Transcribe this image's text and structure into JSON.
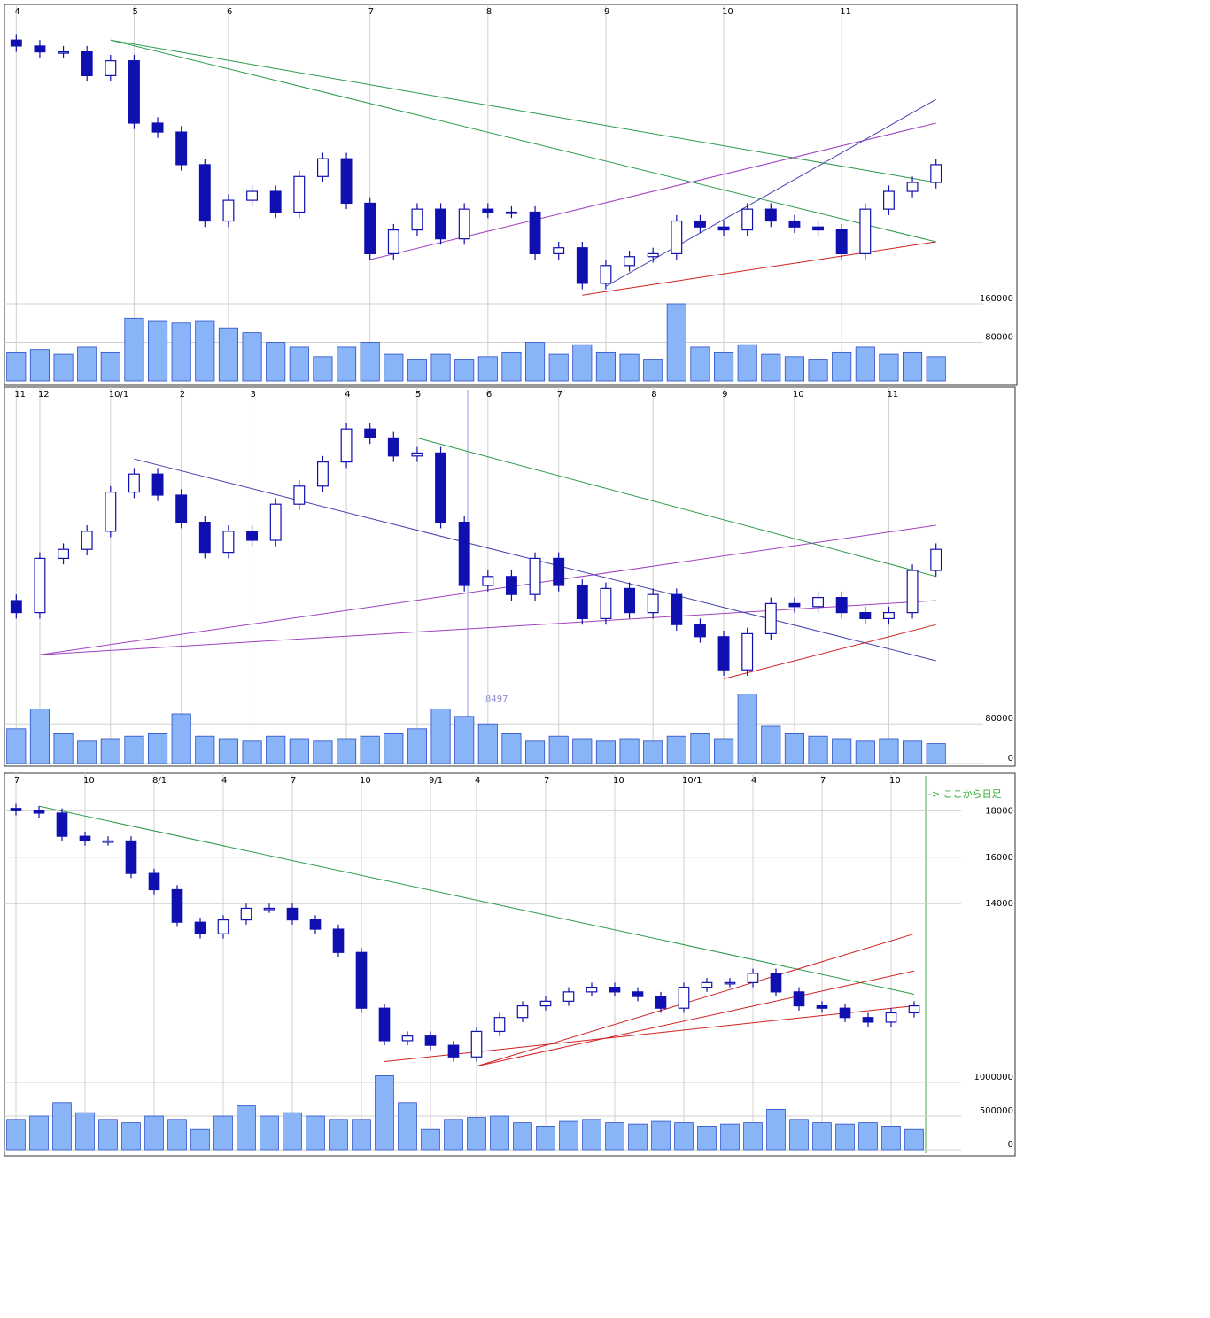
{
  "chart_data": [
    {
      "type": "candlestick",
      "categories": [
        "4",
        null,
        null,
        null,
        null,
        "5",
        null,
        null,
        null,
        "6",
        null,
        null,
        null,
        null,
        null,
        "7",
        null,
        null,
        null,
        null,
        "8",
        null,
        null,
        null,
        null,
        "9",
        null,
        null,
        null,
        null,
        "10",
        null,
        null,
        null,
        null,
        "11",
        null,
        null,
        null,
        null
      ],
      "open": [
        88,
        86,
        84,
        84,
        76,
        81,
        60,
        57,
        46,
        27,
        34,
        37,
        30,
        42,
        48,
        33,
        16,
        24,
        31,
        21,
        31,
        30,
        30,
        16,
        18,
        6,
        12,
        15,
        16,
        27,
        25,
        24,
        31,
        27,
        25,
        24,
        16,
        31,
        37,
        40
      ],
      "high": [
        90,
        88,
        86,
        86,
        83,
        83,
        62,
        59,
        48,
        36,
        39,
        39,
        44,
        50,
        50,
        35,
        26,
        33,
        33,
        33,
        33,
        32,
        32,
        20,
        20,
        14,
        17,
        18,
        29,
        29,
        27,
        33,
        33,
        29,
        27,
        26,
        33,
        39,
        42,
        48
      ],
      "low": [
        84,
        82,
        82,
        74,
        74,
        58,
        55,
        44,
        25,
        25,
        32,
        28,
        28,
        40,
        31,
        14,
        14,
        22,
        19,
        19,
        28,
        28,
        14,
        14,
        4,
        4,
        10,
        13,
        14,
        23,
        22,
        22,
        25,
        23,
        22,
        14,
        14,
        29,
        35,
        38
      ],
      "close": [
        86,
        84,
        84,
        76,
        81,
        60,
        57,
        46,
        27,
        34,
        37,
        30,
        42,
        48,
        33,
        16,
        24,
        31,
        21,
        31,
        30,
        30,
        16,
        18,
        6,
        12,
        15,
        16,
        27,
        25,
        24,
        31,
        27,
        25,
        24,
        16,
        31,
        37,
        40,
        46
      ],
      "ylim": [
        0,
        100
      ],
      "volume": [
        60000,
        65000,
        55000,
        70000,
        60000,
        130000,
        125000,
        120000,
        125000,
        110000,
        100000,
        80000,
        70000,
        50000,
        70000,
        80000,
        55000,
        45000,
        55000,
        45000,
        50000,
        60000,
        80000,
        55000,
        75000,
        60000,
        55000,
        45000,
        160000,
        70000,
        60000,
        75000,
        55000,
        50000,
        45000,
        60000,
        70000,
        55000,
        60000,
        50000
      ],
      "vol_ylim": [
        0,
        160000
      ],
      "vol_yticks": [
        80000,
        160000
      ],
      "trendlines": [
        {
          "color": "#2a9a4a",
          "from": [
            4,
            88
          ],
          "to": [
            39,
            40
          ]
        },
        {
          "color": "#2a9a4a",
          "from": [
            4,
            88
          ],
          "to": [
            39,
            20
          ]
        },
        {
          "color": "#a040c0",
          "from": [
            15,
            14
          ],
          "to": [
            39,
            60
          ]
        },
        {
          "color": "#d02020",
          "from": [
            24,
            2
          ],
          "to": [
            39,
            20
          ]
        },
        {
          "color": "#4040b0",
          "from": [
            25,
            5
          ],
          "to": [
            39,
            68
          ]
        }
      ]
    },
    {
      "type": "candlestick",
      "categories": [
        "11",
        "12",
        null,
        null,
        "10/1",
        null,
        null,
        "2",
        null,
        null,
        "3",
        null,
        null,
        null,
        "4",
        null,
        null,
        "5",
        null,
        null,
        "6",
        null,
        null,
        "7",
        null,
        null,
        null,
        "8",
        null,
        null,
        "9",
        null,
        null,
        "10",
        null,
        null,
        null,
        "11",
        null,
        null
      ],
      "open": [
        30,
        26,
        44,
        47,
        53,
        66,
        72,
        65,
        56,
        46,
        53,
        50,
        62,
        68,
        76,
        87,
        84,
        78,
        79,
        56,
        35,
        38,
        32,
        44,
        35,
        24,
        34,
        26,
        32,
        22,
        18,
        7,
        19,
        29,
        28,
        31,
        26,
        24,
        26,
        40
      ],
      "high": [
        32,
        46,
        49,
        55,
        68,
        74,
        74,
        67,
        58,
        55,
        55,
        64,
        70,
        78,
        89,
        89,
        86,
        81,
        81,
        58,
        40,
        40,
        46,
        46,
        37,
        36,
        36,
        34,
        34,
        24,
        20,
        21,
        31,
        31,
        33,
        33,
        28,
        28,
        42,
        49
      ],
      "low": [
        24,
        24,
        42,
        45,
        51,
        64,
        63,
        54,
        44,
        44,
        48,
        48,
        60,
        66,
        74,
        82,
        76,
        76,
        54,
        33,
        33,
        30,
        30,
        33,
        22,
        22,
        24,
        24,
        20,
        16,
        5,
        5,
        17,
        26,
        26,
        24,
        22,
        22,
        24,
        38
      ],
      "close": [
        26,
        44,
        47,
        53,
        66,
        72,
        65,
        56,
        46,
        53,
        50,
        62,
        68,
        76,
        87,
        84,
        78,
        79,
        56,
        35,
        38,
        32,
        44,
        35,
        24,
        34,
        26,
        32,
        22,
        18,
        7,
        19,
        29,
        28,
        31,
        26,
        24,
        26,
        40,
        47
      ],
      "ylim": [
        0,
        100
      ],
      "volume": [
        70000,
        110000,
        60000,
        45000,
        50000,
        55000,
        60000,
        100000,
        55000,
        50000,
        45000,
        55000,
        50000,
        45000,
        50000,
        55000,
        60000,
        70000,
        110000,
        95000,
        80000,
        60000,
        45000,
        55000,
        50000,
        45000,
        50000,
        45000,
        55000,
        60000,
        50000,
        140000,
        75000,
        60000,
        55000,
        50000,
        45000,
        50000,
        45000,
        40000
      ],
      "vol_ylim": [
        0,
        150000
      ],
      "vol_yticks": [
        0,
        80000
      ],
      "annotation": "8497",
      "trendlines": [
        {
          "color": "#a040c0",
          "from": [
            1,
            12
          ],
          "to": [
            39,
            55
          ]
        },
        {
          "color": "#a040c0",
          "from": [
            1,
            12
          ],
          "to": [
            39,
            30
          ]
        },
        {
          "color": "#4040b0",
          "from": [
            5,
            77
          ],
          "to": [
            39,
            10
          ]
        },
        {
          "color": "#2a9a4a",
          "from": [
            17,
            84
          ],
          "to": [
            39,
            38
          ]
        },
        {
          "color": "#d02020",
          "from": [
            30,
            4
          ],
          "to": [
            39,
            22
          ]
        }
      ]
    },
    {
      "type": "candlestick",
      "categories": [
        "7",
        null,
        null,
        "10",
        null,
        null,
        "8/1",
        null,
        null,
        "4",
        null,
        null,
        "7",
        null,
        null,
        "10",
        null,
        null,
        "9/1",
        null,
        "4",
        null,
        null,
        "7",
        null,
        null,
        "10",
        null,
        null,
        "10/1",
        null,
        null,
        "4",
        null,
        null,
        "7",
        null,
        null,
        "10",
        null
      ],
      "open": [
        18100,
        18000,
        17900,
        16900,
        16700,
        16700,
        15300,
        14600,
        13200,
        12700,
        13300,
        13800,
        13800,
        13300,
        12900,
        11900,
        9500,
        8100,
        8300,
        7900,
        7400,
        8500,
        9100,
        9600,
        9800,
        10200,
        10400,
        10200,
        10000,
        9500,
        10400,
        10600,
        10600,
        11000,
        10200,
        9600,
        9500,
        9100,
        8900,
        9300
      ],
      "high": [
        18300,
        18200,
        18100,
        17100,
        16900,
        16900,
        15500,
        14800,
        13400,
        13500,
        14000,
        14000,
        14000,
        13500,
        13100,
        12100,
        9700,
        8500,
        8500,
        8100,
        8700,
        9300,
        9800,
        10000,
        10400,
        10600,
        10600,
        10400,
        10200,
        10600,
        10800,
        10800,
        11200,
        11200,
        10400,
        9800,
        9700,
        9300,
        9500,
        9800
      ],
      "low": [
        17800,
        17700,
        16700,
        16500,
        16500,
        15100,
        14400,
        13000,
        12500,
        12500,
        13100,
        13600,
        13100,
        12700,
        11700,
        9300,
        7900,
        7900,
        7700,
        7200,
        7200,
        8300,
        8900,
        9400,
        9600,
        10000,
        10000,
        9800,
        9300,
        9300,
        10200,
        10400,
        10400,
        10000,
        9400,
        9300,
        8900,
        8700,
        8700,
        9100
      ],
      "close": [
        18000,
        17900,
        16900,
        16700,
        16700,
        15300,
        14600,
        13200,
        12700,
        13300,
        13800,
        13800,
        13300,
        12900,
        11900,
        9500,
        8100,
        8300,
        7900,
        7400,
        8500,
        9100,
        9600,
        9800,
        10200,
        10400,
        10200,
        10000,
        9500,
        10400,
        10600,
        10600,
        11000,
        10200,
        9600,
        9500,
        9100,
        8900,
        9300,
        9600
      ],
      "ylim": [
        6800,
        19500
      ],
      "yticks": [
        14000,
        16000,
        18000
      ],
      "volume": [
        450000,
        500000,
        700000,
        550000,
        450000,
        400000,
        500000,
        450000,
        300000,
        500000,
        650000,
        500000,
        550000,
        500000,
        450000,
        450000,
        1100000,
        700000,
        300000,
        450000,
        480000,
        500000,
        400000,
        350000,
        420000,
        450000,
        400000,
        380000,
        420000,
        400000,
        350000,
        380000,
        400000,
        600000,
        450000,
        400000,
        380000,
        400000,
        350000,
        300000
      ],
      "vol_ylim": [
        0,
        1500000
      ],
      "vol_yticks": [
        0,
        500000,
        1000000
      ],
      "annotation": "-> ここから日足",
      "trendlines": [
        {
          "color": "#2a9a4a",
          "from": [
            1,
            18200
          ],
          "to": [
            39,
            10100
          ]
        },
        {
          "color": "#d02020",
          "from": [
            16,
            7200
          ],
          "to": [
            39,
            9600
          ]
        },
        {
          "color": "#d02020",
          "from": [
            20,
            7000
          ],
          "to": [
            39,
            12700
          ]
        },
        {
          "color": "#d02020",
          "from": [
            20,
            7000
          ],
          "to": [
            39,
            11100
          ]
        }
      ]
    }
  ]
}
